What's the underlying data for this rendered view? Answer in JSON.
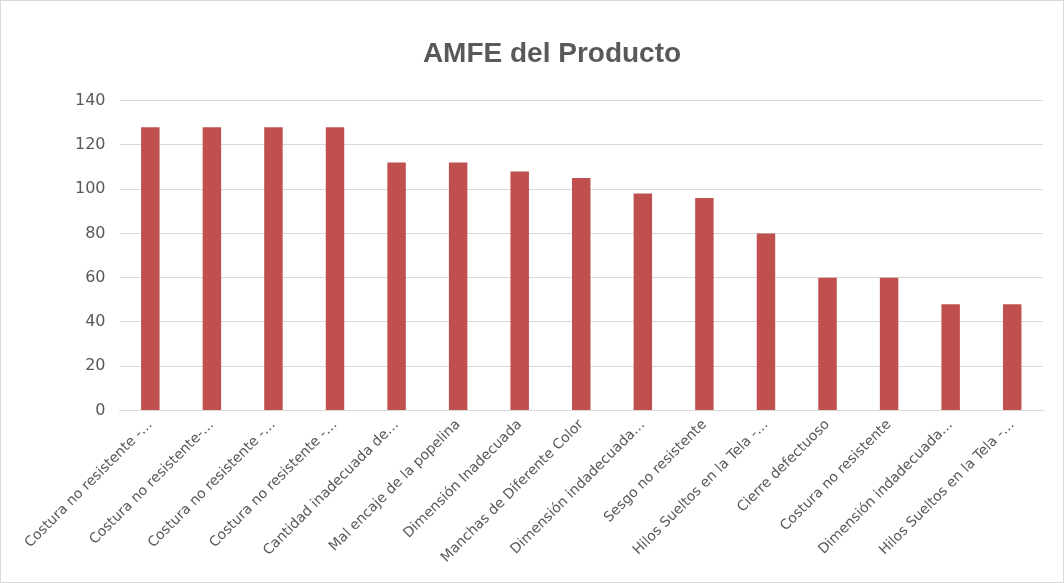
{
  "chart_data": {
    "type": "bar",
    "title": "AMFE del Producto",
    "categories": [
      "Costura no resistente -…",
      "Costura no resistente-…",
      "Costura no resistente -…",
      "Costura no resistente -…",
      "Cantidad inadecuada de…",
      "Mal encaje de la popelina",
      "Dimensión Inadecuada",
      "Manchas de Diferente Color",
      "Dimensión indadecuada…",
      "Sesgo no resistente",
      "Hilos Sueltos en la Tela -…",
      "Cierre defectuoso",
      "Costura no resistente",
      "Dimensión indadecuada…",
      "Hilos Sueltos en la Tela -…"
    ],
    "values": [
      128,
      128,
      128,
      128,
      112,
      112,
      108,
      105,
      98,
      96,
      80,
      60,
      60,
      48,
      48
    ],
    "color": "#c0504d",
    "ylim": [
      0,
      140
    ],
    "yticks": [
      0,
      20,
      40,
      60,
      80,
      100,
      120,
      140
    ],
    "grid": "y",
    "legend": false
  }
}
